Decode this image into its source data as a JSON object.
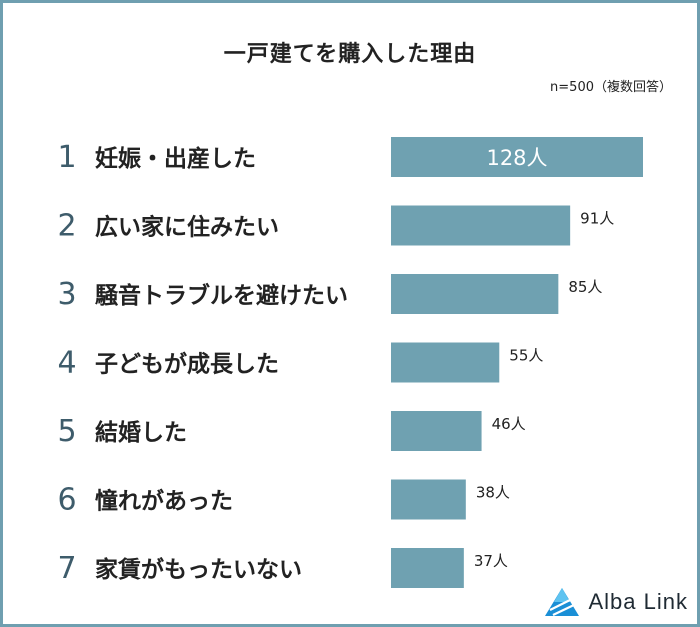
{
  "title": "一戸建てを購入した理由",
  "sample_note": "n=500（複数回答）",
  "brand": "Alba Link",
  "colors": {
    "bar": "#6fa1b1",
    "frame": "#6f9fb0",
    "rank": "#3e5c6b",
    "text": "#222222"
  },
  "chart_data": {
    "type": "bar",
    "orientation": "horizontal",
    "title": "一戸建てを購入した理由",
    "unit": "人",
    "ranks": [
      "1",
      "2",
      "3",
      "4",
      "5",
      "6",
      "7"
    ],
    "categories": [
      "妊娠・出産した",
      "広い家に住みたい",
      "騒音トラブルを避けたい",
      "子どもが成長した",
      "結婚した",
      "憧れがあった",
      "家賃がもったいない"
    ],
    "values": [
      128,
      91,
      85,
      55,
      46,
      38,
      37
    ],
    "value_labels": [
      "128人",
      "91人",
      "85人",
      "55人",
      "46人",
      "38人",
      "37人"
    ],
    "xlim": [
      0,
      128
    ]
  }
}
